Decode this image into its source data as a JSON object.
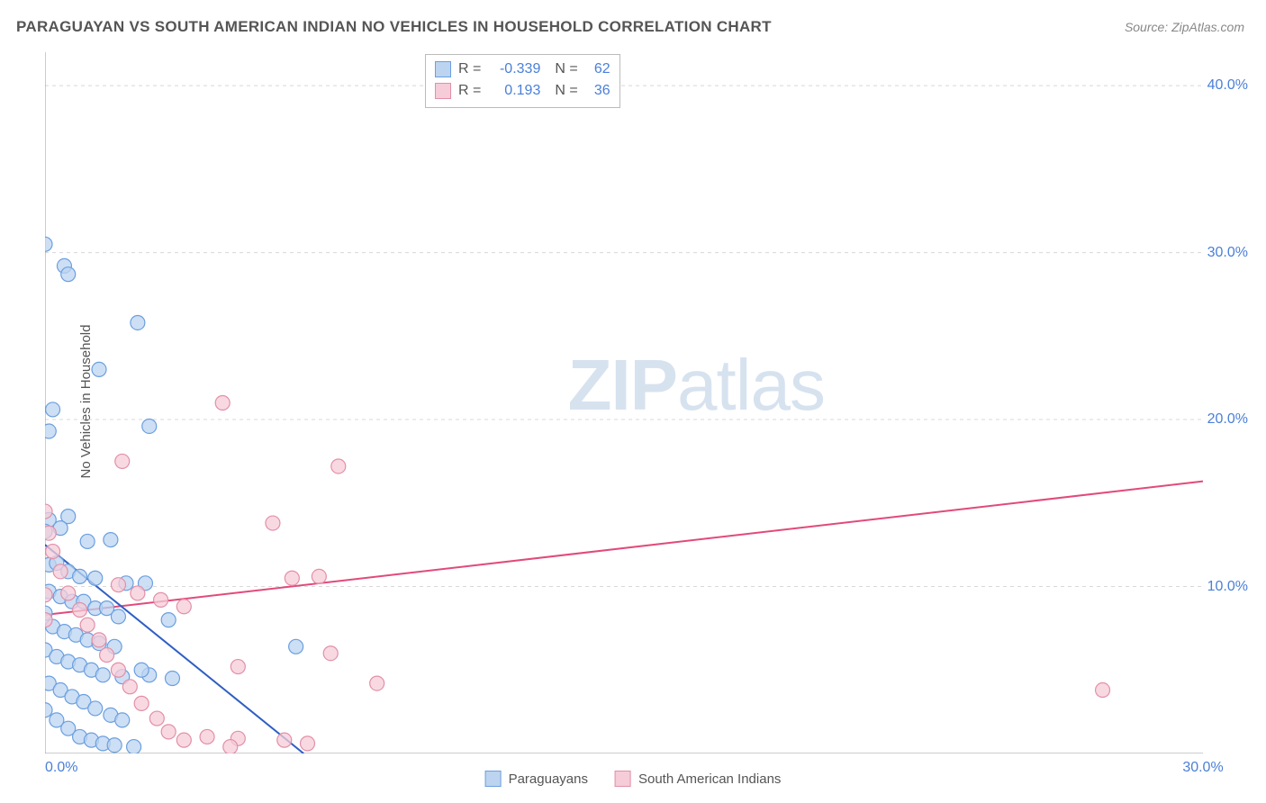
{
  "title": "PARAGUAYAN VS SOUTH AMERICAN INDIAN NO VEHICLES IN HOUSEHOLD CORRELATION CHART",
  "source": "Source: ZipAtlas.com",
  "y_axis_label": "No Vehicles in Household",
  "watermark": {
    "bold": "ZIP",
    "rest": "atlas"
  },
  "chart": {
    "type": "scatter",
    "xlim": [
      0,
      30
    ],
    "ylim": [
      0,
      42
    ],
    "x_ticks": [
      0,
      5,
      10,
      15,
      20,
      25,
      30
    ],
    "x_tick_labels": [
      "0.0%",
      "",
      "",
      "",
      "",
      "",
      "30.0%"
    ],
    "y_ticks": [
      10,
      20,
      30,
      40
    ],
    "y_tick_labels": [
      "10.0%",
      "20.0%",
      "30.0%",
      "40.0%"
    ],
    "grid_color": "#d8d8d8",
    "axis_color": "#999999",
    "tick_color": "#9a9a9a",
    "background_color": "#ffffff",
    "marker_radius": 8,
    "marker_stroke_width": 1.2,
    "line_width": 2,
    "series": [
      {
        "name": "Paraguayans",
        "fill": "#bcd4f0",
        "stroke": "#6a9fe0",
        "line_color": "#2f5fc4",
        "trend": {
          "x1": 0,
          "y1": 12.5,
          "x2": 6.7,
          "y2": 0
        },
        "stats": {
          "R": "-0.339",
          "N": "62"
        },
        "points": [
          [
            0.0,
            30.5
          ],
          [
            0.5,
            29.2
          ],
          [
            0.6,
            28.7
          ],
          [
            2.4,
            25.8
          ],
          [
            1.4,
            23.0
          ],
          [
            0.2,
            20.6
          ],
          [
            0.1,
            19.3
          ],
          [
            2.7,
            19.6
          ],
          [
            0.6,
            14.2
          ],
          [
            0.1,
            14.0
          ],
          [
            0.0,
            13.3
          ],
          [
            0.4,
            13.5
          ],
          [
            1.1,
            12.7
          ],
          [
            1.7,
            12.8
          ],
          [
            0.1,
            11.3
          ],
          [
            0.3,
            11.4
          ],
          [
            0.6,
            10.9
          ],
          [
            0.9,
            10.6
          ],
          [
            1.3,
            10.5
          ],
          [
            2.1,
            10.2
          ],
          [
            2.6,
            10.2
          ],
          [
            0.1,
            9.7
          ],
          [
            0.4,
            9.4
          ],
          [
            0.7,
            9.1
          ],
          [
            1.0,
            9.1
          ],
          [
            1.3,
            8.7
          ],
          [
            1.6,
            8.7
          ],
          [
            1.9,
            8.2
          ],
          [
            0.0,
            8.4
          ],
          [
            0.2,
            7.6
          ],
          [
            0.5,
            7.3
          ],
          [
            0.8,
            7.1
          ],
          [
            1.1,
            6.8
          ],
          [
            1.4,
            6.6
          ],
          [
            1.8,
            6.4
          ],
          [
            0.0,
            6.2
          ],
          [
            0.3,
            5.8
          ],
          [
            0.6,
            5.5
          ],
          [
            0.9,
            5.3
          ],
          [
            1.2,
            5.0
          ],
          [
            1.5,
            4.7
          ],
          [
            2.0,
            4.6
          ],
          [
            2.7,
            4.7
          ],
          [
            3.3,
            4.5
          ],
          [
            0.1,
            4.2
          ],
          [
            0.4,
            3.8
          ],
          [
            0.7,
            3.4
          ],
          [
            1.0,
            3.1
          ],
          [
            1.3,
            2.7
          ],
          [
            1.7,
            2.3
          ],
          [
            2.0,
            2.0
          ],
          [
            0.0,
            2.6
          ],
          [
            0.3,
            2.0
          ],
          [
            0.6,
            1.5
          ],
          [
            0.9,
            1.0
          ],
          [
            1.2,
            0.8
          ],
          [
            1.5,
            0.6
          ],
          [
            1.8,
            0.5
          ],
          [
            2.3,
            0.4
          ],
          [
            6.5,
            6.4
          ],
          [
            3.2,
            8.0
          ],
          [
            2.5,
            5.0
          ]
        ]
      },
      {
        "name": "South American Indians",
        "fill": "#f5ccd8",
        "stroke": "#e38fa8",
        "line_color": "#e14a7a",
        "trend": {
          "x1": 0,
          "y1": 8.3,
          "x2": 30,
          "y2": 16.3
        },
        "stats": {
          "R": "0.193",
          "N": "36"
        },
        "points": [
          [
            4.6,
            21.0
          ],
          [
            7.6,
            17.2
          ],
          [
            5.9,
            13.8
          ],
          [
            6.4,
            10.5
          ],
          [
            7.1,
            10.6
          ],
          [
            2.0,
            17.5
          ],
          [
            1.9,
            10.1
          ],
          [
            2.4,
            9.6
          ],
          [
            3.0,
            9.2
          ],
          [
            3.6,
            8.8
          ],
          [
            0.0,
            14.5
          ],
          [
            0.1,
            13.2
          ],
          [
            0.2,
            12.1
          ],
          [
            0.4,
            10.9
          ],
          [
            0.6,
            9.6
          ],
          [
            0.9,
            8.6
          ],
          [
            1.1,
            7.7
          ],
          [
            1.4,
            6.8
          ],
          [
            1.6,
            5.9
          ],
          [
            1.9,
            5.0
          ],
          [
            2.2,
            4.0
          ],
          [
            2.5,
            3.0
          ],
          [
            2.9,
            2.1
          ],
          [
            3.2,
            1.3
          ],
          [
            3.6,
            0.8
          ],
          [
            4.2,
            1.0
          ],
          [
            5.0,
            0.9
          ],
          [
            5.0,
            5.2
          ],
          [
            7.4,
            6.0
          ],
          [
            8.6,
            4.2
          ],
          [
            4.8,
            0.4
          ],
          [
            6.2,
            0.8
          ],
          [
            6.8,
            0.6
          ],
          [
            0.0,
            8.0
          ],
          [
            0.0,
            9.5
          ],
          [
            27.4,
            3.8
          ]
        ]
      }
    ]
  },
  "legend_bottom": [
    {
      "label": "Paraguayans",
      "fill": "#bcd4f0",
      "stroke": "#6a9fe0"
    },
    {
      "label": "South American Indians",
      "fill": "#f5ccd8",
      "stroke": "#e38fa8"
    }
  ]
}
